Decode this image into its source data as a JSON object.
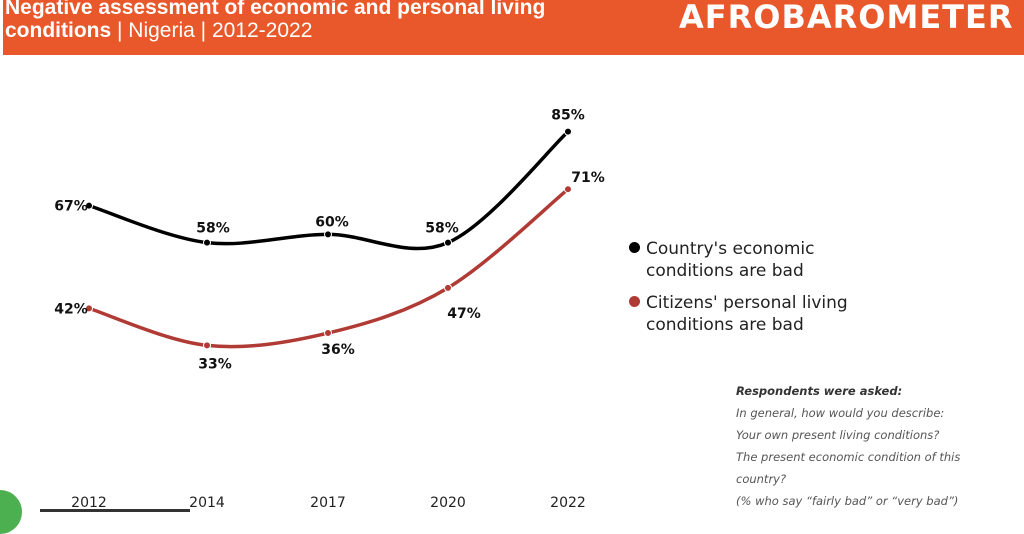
{
  "header": {
    "title_bold_1": "Negative assessment of economic and personal living",
    "title_bold_2": "conditions",
    "title_rest": " | Nigeria | 2012-2022",
    "logo": "AFROBAROMETER"
  },
  "chart_data": {
    "type": "line",
    "categories": [
      "2012",
      "2014",
      "2017",
      "2020",
      "2022"
    ],
    "series": [
      {
        "name": "Country's economic conditions are bad",
        "legend_1": "Country's economic",
        "legend_2": "conditions are bad",
        "color": "#000000",
        "values": [
          67,
          58,
          60,
          58,
          85
        ]
      },
      {
        "name": "Citizens' personal living conditions are bad",
        "legend_1": "Citizens' personal living",
        "legend_2": "conditions are bad",
        "color": "#B03A34",
        "values": [
          42,
          33,
          36,
          47,
          71
        ]
      }
    ],
    "value_suffix": "%",
    "legend_placement": "right",
    "grid": false
  },
  "note": {
    "heading": "Respondents were asked:",
    "lines": [
      "In general, how would you describe:",
      "Your own present living conditions?",
      "The present economic condition of this",
      "country?",
      "(% who say “fairly bad” or “very bad”)"
    ]
  },
  "colors": {
    "header": "#E8582B"
  }
}
